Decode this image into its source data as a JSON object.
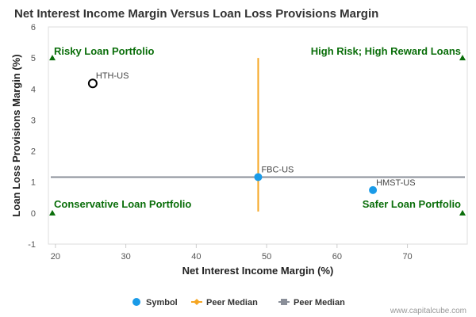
{
  "chart_data": {
    "type": "scatter",
    "title": "Net Interest Income Margin Versus Loan Loss Provisions Margin",
    "xlabel": "Net Interest Income Margin (%)",
    "ylabel": "Loan Loss Provisions Margin (%)",
    "xlim": [
      19,
      78.5
    ],
    "ylim": [
      -1,
      6
    ],
    "x_ticks": [
      20,
      30,
      40,
      50,
      60,
      70
    ],
    "y_ticks": [
      -1,
      0,
      1,
      2,
      3,
      4,
      5,
      6
    ],
    "grid": false,
    "points": [
      {
        "label": "HTH-US",
        "x": 25.3,
        "y": 4.18,
        "style": "hollow-black"
      },
      {
        "label": "FBC-US",
        "x": 48.8,
        "y": 1.16,
        "style": "blue"
      },
      {
        "label": "HMST-US",
        "x": 65.1,
        "y": 0.74,
        "style": "blue"
      }
    ],
    "peer_median_x": 48.8,
    "peer_median_x_range": [
      0.05,
      5.0
    ],
    "peer_median_y": 1.16,
    "quadrant_labels": [
      {
        "text": "Risky Loan Portfolio",
        "corner": "top-left"
      },
      {
        "text": "High Risk; High Reward Loans",
        "corner": "top-right"
      },
      {
        "text": "Conservative Loan Portfolio",
        "corner": "bottom-left"
      },
      {
        "text": "Safer Loan Portfolio",
        "corner": "bottom-right"
      }
    ],
    "legend": [
      {
        "label": "Symbol",
        "marker": "circle",
        "color": "#1a9be8"
      },
      {
        "label": "Peer Median",
        "marker": "diamond-line",
        "color": "#f5a623"
      },
      {
        "label": "Peer Median",
        "marker": "square-line",
        "color": "#8a8f99"
      }
    ],
    "legend_placement": "bottom-center",
    "colors": {
      "symbol": "#1a9be8",
      "median_vertical": "#f5a623",
      "median_horizontal": "#8a8f99",
      "quadrant_text": "#0a6e0a",
      "highlight_outline": "#000000"
    }
  },
  "credit": "www.capitalcube.com"
}
